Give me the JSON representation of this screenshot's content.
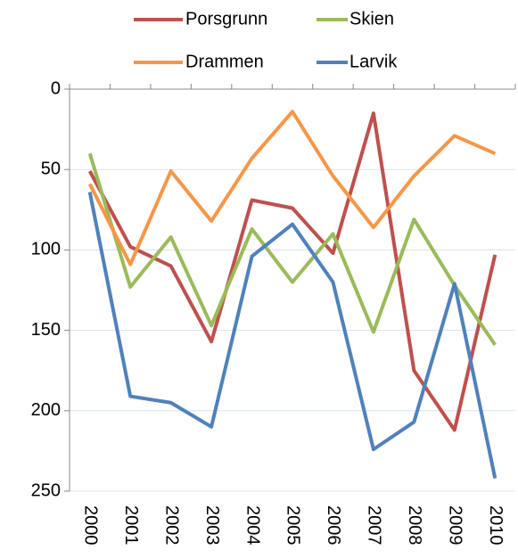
{
  "chart_data": {
    "type": "line",
    "categories": [
      "2000",
      "2001",
      "2002",
      "2003",
      "2004",
      "2005",
      "2006",
      "2007",
      "2008",
      "2009",
      "2010"
    ],
    "series": [
      {
        "name": "Porsgrunn",
        "color": "#c0504d",
        "values": [
          51,
          98,
          110,
          157,
          69,
          74,
          102,
          15,
          175,
          212,
          103
        ]
      },
      {
        "name": "Skien",
        "color": "#9bbb59",
        "values": [
          40,
          123,
          92,
          147,
          87,
          120,
          90,
          151,
          81,
          122,
          159
        ]
      },
      {
        "name": "Drammen",
        "color": "#f79646",
        "values": [
          59,
          109,
          51,
          82,
          43,
          14,
          54,
          86,
          54,
          29,
          40
        ]
      },
      {
        "name": "Larvik",
        "color": "#4f81bd",
        "values": [
          64,
          191,
          195,
          210,
          104,
          84,
          120,
          224,
          207,
          121,
          242
        ]
      }
    ],
    "ylim": [
      0,
      250
    ],
    "yticks": [
      0,
      50,
      100,
      150,
      200,
      250
    ],
    "y_inverted": true,
    "grid": true,
    "legend": "top"
  }
}
